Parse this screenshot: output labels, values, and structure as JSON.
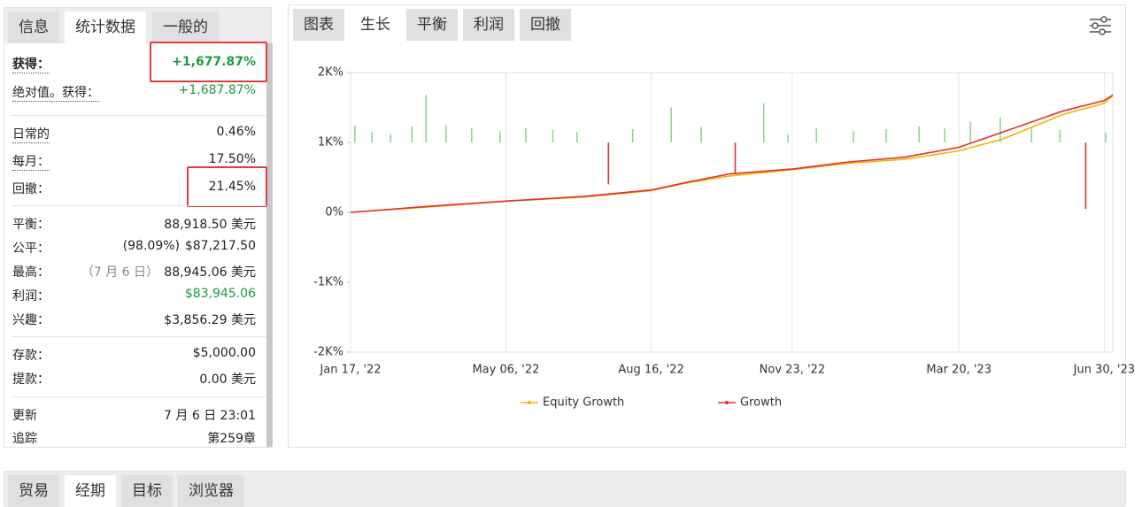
{
  "left_tabs": [
    "信息",
    "统计数据",
    "一般的"
  ],
  "stats": [
    [
      {
        "label": "获得：",
        "value": "+1,677.87%",
        "color": "#1a9c3e",
        "bold": true,
        "highlight": true,
        "underline": true
      },
      {
        "label": "绝对值。获得：",
        "value": "+1,687.87%",
        "color": "#1a9c3e",
        "underline": true
      }
    ],
    [
      {
        "label": "日常的",
        "value": "0.46%",
        "underline": true
      },
      {
        "label": "每月：",
        "value": "17.50%",
        "underline": true
      },
      {
        "label": "回撤：",
        "value": "21.45%",
        "highlight": true
      }
    ],
    [
      {
        "label": "平衡：",
        "value": "88,918.50 美元"
      },
      {
        "label": "公平：",
        "note": "(98.09%)",
        "value": "$87,217.50"
      },
      {
        "label": "最高：",
        "note": "（7 月 6 日）",
        "note_color": "#888",
        "value": "88,945.06 美元"
      },
      {
        "label": "利润：",
        "value": "$83,945.06",
        "color": "#1a9c3e"
      },
      {
        "label": "兴趣：",
        "value": "$3,856.29 美元"
      }
    ],
    [
      {
        "label": "存款：",
        "value": "$5,000.00"
      },
      {
        "label": "提款：",
        "value": "0.00 美元"
      }
    ],
    [
      {
        "label": "更新",
        "value": "7 月 6 日 23:01"
      },
      {
        "label": "追踪",
        "value": "第259章"
      }
    ]
  ],
  "chart_tabs": [
    "图表",
    "生长",
    "平衡",
    "利润",
    "回撤"
  ],
  "bottom_tabs": [
    "贸易",
    "经期",
    "目标",
    "浏览器"
  ],
  "chart_data": {
    "type": "line",
    "xlim": [
      "2022-01-17",
      "2023-07-06"
    ],
    "xticks": [
      {
        "value": "2022-01-17",
        "label": "Jan 17, '22"
      },
      {
        "value": "2022-05-06",
        "label": "May 06, '22"
      },
      {
        "value": "2022-08-16",
        "label": "Aug 16, '22"
      },
      {
        "value": "2022-11-23",
        "label": "Nov 23, '22"
      },
      {
        "value": "2023-03-20",
        "label": "Mar 20, '23"
      },
      {
        "value": "2023-06-30",
        "label": "Jun 30, '23"
      }
    ],
    "ylim": [
      -2000,
      2000
    ],
    "yticks": [
      {
        "value": 2000,
        "label": "2K%"
      },
      {
        "value": 1000,
        "label": "1K%"
      },
      {
        "value": 0,
        "label": "0%"
      },
      {
        "value": -1000,
        "label": "-1K%"
      },
      {
        "value": -2000,
        "label": "-2K%"
      }
    ],
    "grid": true,
    "legend": "bottom",
    "x": [
      "2022-01-17",
      "2022-03-15",
      "2022-05-06",
      "2022-07-01",
      "2022-08-16",
      "2022-09-10",
      "2022-10-10",
      "2022-11-23",
      "2023-01-01",
      "2023-02-10",
      "2023-03-20",
      "2023-04-20",
      "2023-06-01",
      "2023-06-30",
      "2023-07-06"
    ],
    "series": [
      {
        "name": "Equity Growth",
        "color": "#f5b400",
        "values": [
          0,
          80,
          160,
          220,
          310,
          420,
          520,
          610,
          700,
          760,
          880,
          1050,
          1400,
          1560,
          1670
        ]
      },
      {
        "name": "Growth",
        "color": "#e0312c",
        "values": [
          0,
          90,
          160,
          230,
          320,
          430,
          550,
          620,
          720,
          790,
          930,
          1150,
          1450,
          1600,
          1678
        ]
      }
    ],
    "bars": {
      "color": "#90d490",
      "down_color": "#e0312c",
      "x": [
        "2022-01-20",
        "2022-02-01",
        "2022-02-14",
        "2022-03-01",
        "2022-03-11",
        "2022-03-25",
        "2022-04-12",
        "2022-05-02",
        "2022-05-20",
        "2022-06-08",
        "2022-06-25",
        "2022-07-17",
        "2022-08-03",
        "2022-08-30",
        "2022-09-20",
        "2022-10-14",
        "2022-11-03",
        "2022-11-20",
        "2022-12-10",
        "2023-01-05",
        "2023-01-28",
        "2023-02-20",
        "2023-03-10",
        "2023-03-28",
        "2023-04-18",
        "2023-05-10",
        "2023-05-30",
        "2023-06-17",
        "2023-07-01"
      ],
      "values": [
        1240,
        1150,
        1120,
        1230,
        1680,
        1250,
        1200,
        1160,
        1210,
        1180,
        1150,
        400,
        1190,
        1500,
        1220,
        550,
        1560,
        1120,
        1200,
        1160,
        1190,
        1230,
        1200,
        1300,
        1360,
        1230,
        1180,
        50,
        1140
      ]
    }
  }
}
